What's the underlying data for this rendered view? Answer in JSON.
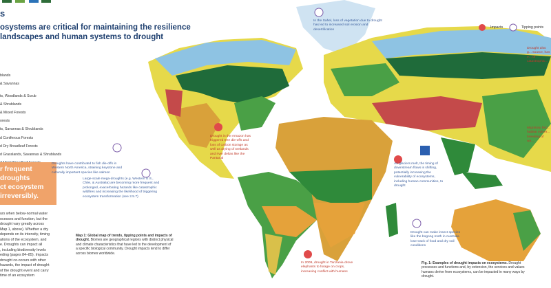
{
  "header": {
    "heading": "s",
    "title_lines": [
      "osystems are critical for maintaining the resilience",
      " landscapes and human systems to drought"
    ]
  },
  "legend": [
    "blands",
    "& Savannas",
    "",
    "ts, Woodlands & Scrub",
    "& Shrublands",
    "& Mixed Forests",
    "orests",
    "ts, Savannas & Shrublands",
    "d Coniferous Forests",
    "d Dry Broadleaf Forests",
    "d Grasslands, Savannas & Shrublands",
    "d Moist Broadleaf Forests"
  ],
  "callout": [
    "r frequent droughts",
    "ct ecosystem",
    " irreversibly."
  ],
  "body": [
    "urs when below-normal water",
    "ocesses and function, but the",
    "drought vary greatly across",
    "Map 1, above). Whether a dry",
    "depends on its intensity, timing",
    "ations of the ecosystem, and",
    "e. Droughts can impact all",
    ", including biodiversity levels",
    "eding (pages 84–85). Impacts",
    "drought co-occurs with other",
    "hazards, the impact of drought",
    "of the drought event and carry",
    "time of an ecosystem"
  ],
  "map": {
    "keys": [
      "Impacts",
      "Tipping points"
    ],
    "annotations": [
      "In the Sahel, loss of vegetation due to drought has led to increased soil erosion and desertification",
      "Drought in the Amazon has triggered tree die-offs and loss of carbon storage as well as drying of wetlands and river deltas like the Pantanal",
      "Droughts have contributed to fish die-offs in Western North America, straining keystone and culturally important species like salmon",
      "Large-scale mega-droughts (e.g. Western U.S., Chile, & Australia) are becoming more frequent and prolonged, exacerbating hazards like catastrophic wildfires and increasing the likelihood of triggering ecosystem transformation (see 2.5.7)",
      "As glaciers melt, the timing of downstream flows is shifting, potentially increasing the vulnerability of ecosystems, including human communities, to drought",
      "Drought can make insect species like the bogong moth in Australia lose track of food and dry soil conditions",
      "In 2009, drought in Tanzania drove elephants to forage on crops, increasing conflict with humans",
      "Drought also g... source, has e... of catastrophic...",
      "Migratory bird... habitat vulner... breeding of wa..."
    ],
    "caption_title": "Map 1: Global map of trends, tipping points and impacts of drought.",
    "caption_text": "Biomes are geographical regions with distinct physical and climate characteristics that have led to the development of a specific biological community. Drought impacts tend to differ across biomes worldwide."
  },
  "figure": {
    "caption_title": "Fig. 1: Examples of drought impacts on ecosystems.",
    "caption_text": "Drought processes and functions and, by extension, the services and values humans derive from ecosystems, can be impacted in many ways by drought."
  }
}
